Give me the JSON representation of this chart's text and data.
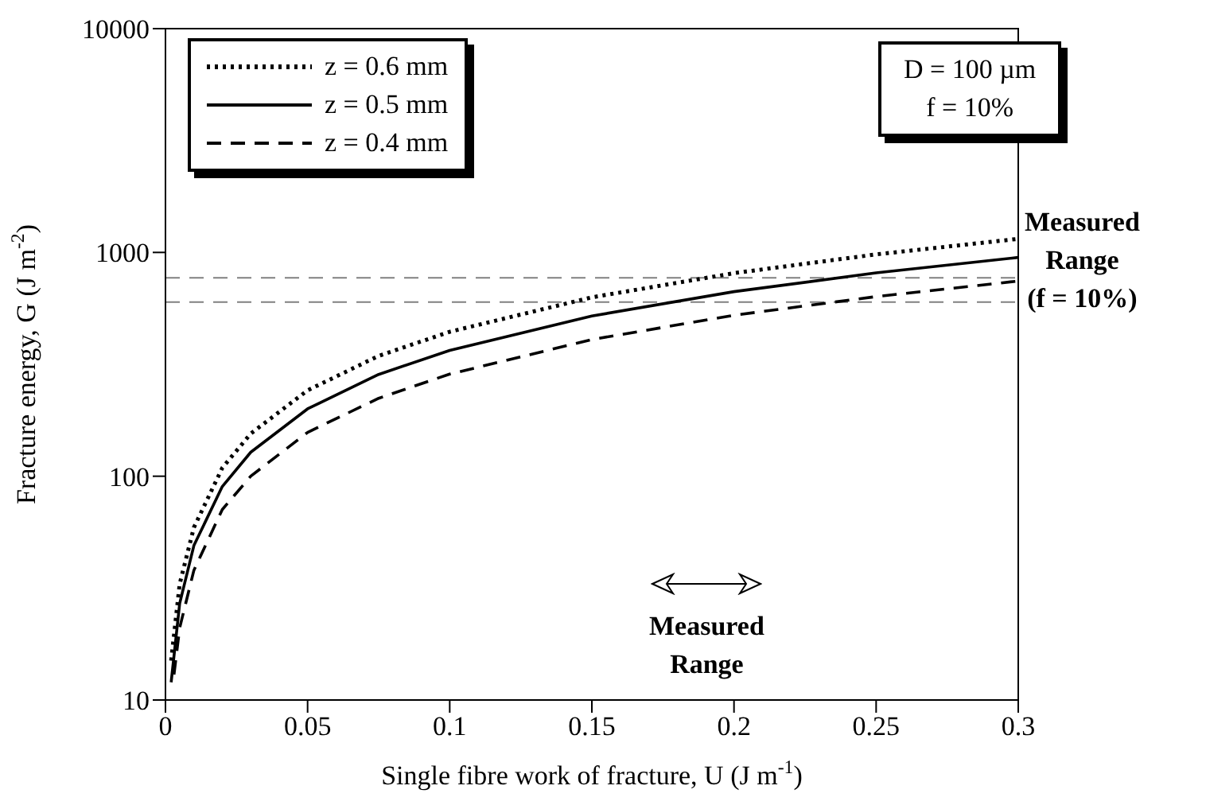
{
  "chart_data": {
    "type": "line",
    "xlabel": "Single fibre work of fracture, U (J m$^{-1}$)",
    "ylabel": "Fracture energy, G (J m$^{-2}$)",
    "xlim": [
      0,
      0.3
    ],
    "xticks": [
      0,
      0.05,
      0.1,
      0.15,
      0.2,
      0.25,
      0.3
    ],
    "ylim": [
      10,
      10000
    ],
    "yticks": [
      10,
      100,
      1000,
      10000
    ],
    "log": "y",
    "legend": "top left",
    "marker": "none",
    "series": [
      {
        "name": "z = 0.6 mm",
        "color": "#000000",
        "line_style": "dotted",
        "x": [
          0.002,
          0.005,
          0.01,
          0.02,
          0.03,
          0.05,
          0.075,
          0.1,
          0.15,
          0.2,
          0.25,
          0.3
        ],
        "values": [
          15,
          33,
          59,
          109,
          155,
          242,
          345,
          442,
          630,
          808,
          980,
          1150
        ]
      },
      {
        "name": "z = 0.5 mm",
        "color": "#000000",
        "line_style": "solid",
        "x": [
          0.002,
          0.005,
          0.01,
          0.02,
          0.03,
          0.05,
          0.075,
          0.1,
          0.15,
          0.2,
          0.25,
          0.3
        ],
        "values": [
          12,
          27,
          49,
          90,
          128,
          200,
          285,
          365,
          520,
          668,
          810,
          950
        ]
      },
      {
        "name": "z = 0.4 mm",
        "color": "#000000",
        "line_style": "dashed",
        "x": [
          0.003,
          0.005,
          0.01,
          0.02,
          0.03,
          0.05,
          0.075,
          0.1,
          0.15,
          0.2,
          0.25,
          0.3
        ],
        "values": [
          13,
          21,
          38,
          71,
          100,
          157,
          223,
          286,
          408,
          524,
          635,
          745
        ]
      }
    ],
    "ref_lines": [
      {
        "axis": "y",
        "value": 770,
        "color": "#808080",
        "line_style": "dashed"
      },
      {
        "axis": "y",
        "value": 600,
        "color": "#808080",
        "line_style": "dashed"
      }
    ],
    "annotations": [
      "D = 100 µm\nf = 10%",
      "Measured\nRange\n(f = 10%)",
      "Measured\nRange"
    ]
  }
}
